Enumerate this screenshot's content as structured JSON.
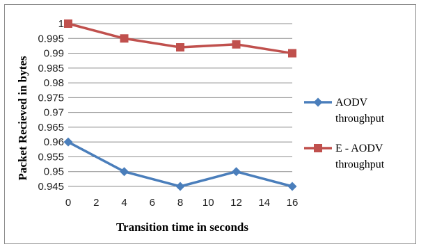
{
  "chart_data": {
    "type": "line",
    "xlabel": "Transition time in seconds",
    "ylabel": "Packet Recieved in bytes",
    "x": [
      0,
      4,
      8,
      12,
      16
    ],
    "x_ticks": [
      "0",
      "2",
      "4",
      "6",
      "8",
      "10",
      "12",
      "14",
      "16"
    ],
    "ylim": [
      0.945,
      1.0
    ],
    "y_ticks": [
      "1",
      "0.995",
      "0.99",
      "0.985",
      "0.98",
      "0.975",
      "0.97",
      "0.965",
      "0.96",
      "0.955",
      "0.95",
      "0.945"
    ],
    "grid": true,
    "legend_position": "right",
    "series": [
      {
        "name": "AODV throughput",
        "legend_lines": [
          "AODV",
          "throughput"
        ],
        "values": [
          0.96,
          0.95,
          0.945,
          0.95,
          0.945
        ],
        "color": "#4a7ebb",
        "marker": "diamond"
      },
      {
        "name": "E - AODV throughput",
        "legend_lines": [
          "E - AODV",
          "throughput"
        ],
        "values": [
          1.0,
          0.995,
          0.992,
          0.993,
          0.99
        ],
        "color": "#c0504d",
        "marker": "square"
      }
    ]
  }
}
